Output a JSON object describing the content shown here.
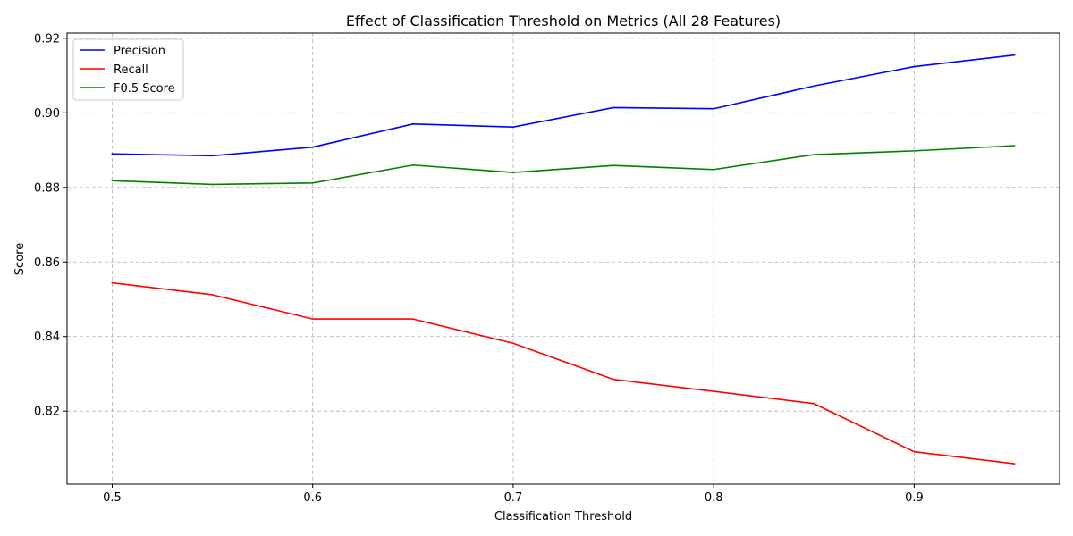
{
  "chart_data": {
    "type": "line",
    "title": "Effect of Classification Threshold on Metrics (All 28 Features)",
    "xlabel": "Classification Threshold",
    "ylabel": "Score",
    "x": [
      0.5,
      0.55,
      0.6,
      0.65,
      0.7,
      0.75,
      0.8,
      0.85,
      0.9,
      0.95
    ],
    "xlim": [
      0.4775,
      0.9725
    ],
    "ylim": [
      0.8004,
      0.9214
    ],
    "xticks": [
      0.5,
      0.6,
      0.7,
      0.8,
      0.9
    ],
    "xtick_labels": [
      "0.5",
      "0.6",
      "0.7",
      "0.8",
      "0.9"
    ],
    "yticks": [
      0.82,
      0.84,
      0.86,
      0.88,
      0.9,
      0.92
    ],
    "ytick_labels": [
      "0.82",
      "0.84",
      "0.86",
      "0.88",
      "0.90",
      "0.92"
    ],
    "grid": true,
    "legend_position": "top-left",
    "series": [
      {
        "name": "Precision",
        "color": "#0000ff",
        "values": [
          0.889,
          0.8885,
          0.8908,
          0.897,
          0.8962,
          0.9014,
          0.9011,
          0.9072,
          0.9124,
          0.9155
        ]
      },
      {
        "name": "Recall",
        "color": "#ff0000",
        "values": [
          0.8544,
          0.8512,
          0.8447,
          0.8447,
          0.8382,
          0.8285,
          0.8253,
          0.822,
          0.8091,
          0.8059
        ]
      },
      {
        "name": "F0.5 Score",
        "color": "#008000",
        "values": [
          0.8818,
          0.8808,
          0.8812,
          0.886,
          0.884,
          0.8859,
          0.8848,
          0.8888,
          0.8898,
          0.8912
        ]
      }
    ]
  }
}
